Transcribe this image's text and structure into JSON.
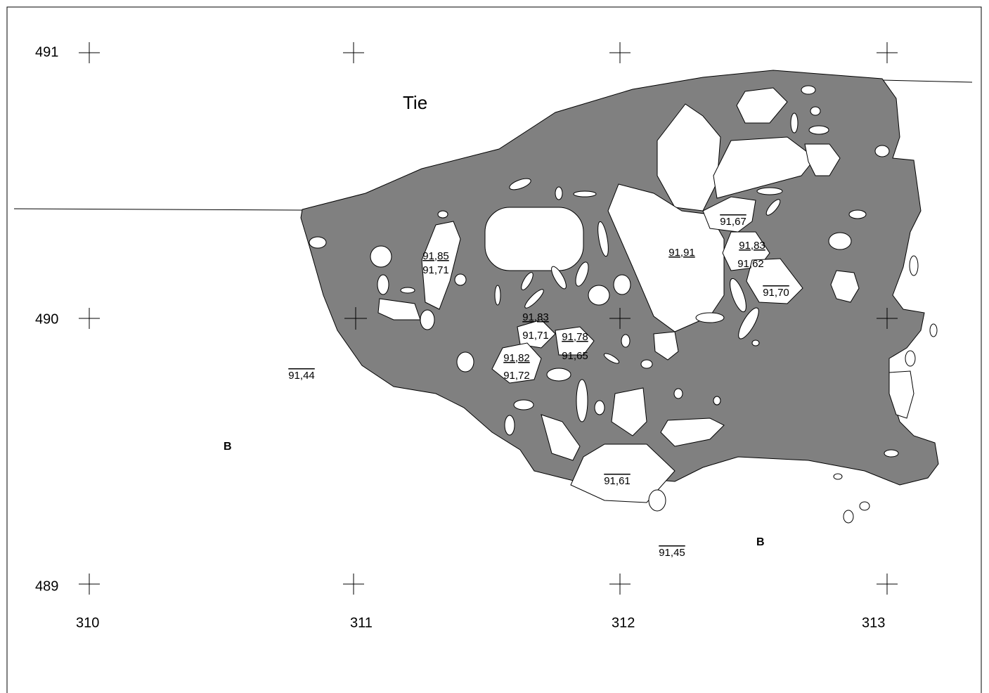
{
  "grid": {
    "rows": [
      "491",
      "490",
      "489"
    ],
    "cols": [
      "310",
      "311",
      "312",
      "313"
    ]
  },
  "label": "Tie",
  "markers": [
    "B",
    "B"
  ],
  "levels": [
    "91,85",
    "91,71",
    "91,83",
    "91,71",
    "91,78",
    "91,65",
    "91,82",
    "91,72",
    "91,91",
    "91,67",
    "91,83",
    "91,62",
    "91,70",
    "91,44",
    "91,61",
    "91,45"
  ]
}
